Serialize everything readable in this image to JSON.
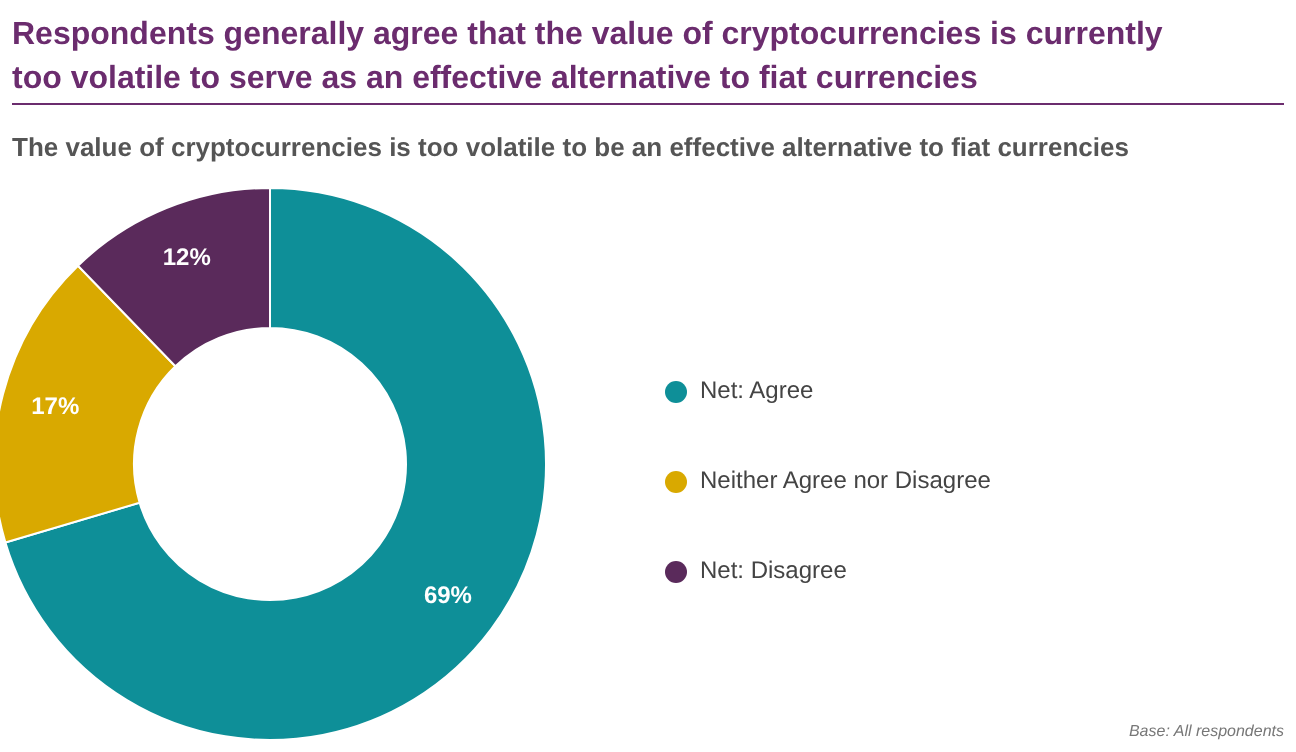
{
  "chart_data": {
    "type": "donut",
    "title": "Respondents generally agree that the value of cryptocurrencies is currently too volatile to serve as an effective alternative to fiat currencies",
    "subtitle": "The value of cryptocurrencies is too volatile to be an effective alternative to fiat currencies",
    "categories": [
      "Net: Agree",
      "Neither Agree nor Disagree",
      "Net: Disagree"
    ],
    "values": [
      69,
      17,
      12
    ],
    "value_labels": [
      "69%",
      "17%",
      "12%"
    ],
    "colors": [
      "#0e8f98",
      "#d9a900",
      "#5a2a5b"
    ],
    "legend": "right",
    "annotations": [
      "Base: All respondents"
    ]
  }
}
